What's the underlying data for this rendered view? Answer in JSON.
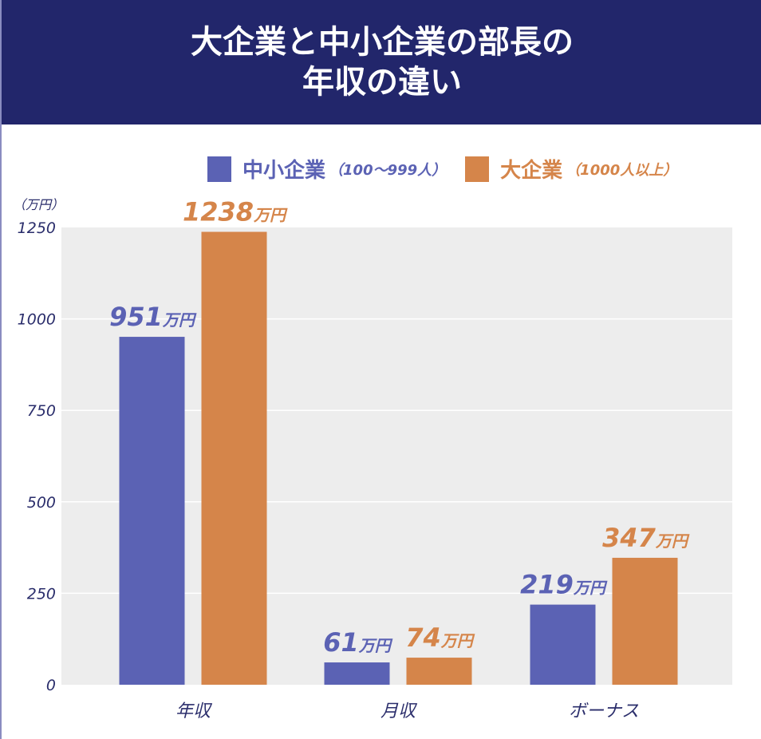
{
  "header": {
    "title_line1": "大企業と中小企業の部長の",
    "title_line2": "年収の違い"
  },
  "chart_data": {
    "type": "bar",
    "title": "大企業と中小企業の部長の年収の違い",
    "ylabel": "（万円）",
    "ylim": [
      0,
      1250
    ],
    "yticks": [
      0,
      250,
      500,
      750,
      1000,
      1250
    ],
    "grid": true,
    "legend_position": "top-right",
    "categories": [
      "年収",
      "月収",
      "ボーナス"
    ],
    "unit_label": "万円",
    "series": [
      {
        "name": "中小企業",
        "note": "（100〜999人）",
        "color": "#5b62b4",
        "values": [
          951,
          61,
          219
        ]
      },
      {
        "name": "大企業",
        "note": "（1000人以上）",
        "color": "#d5854a",
        "values": [
          1238,
          74,
          347
        ]
      }
    ]
  }
}
